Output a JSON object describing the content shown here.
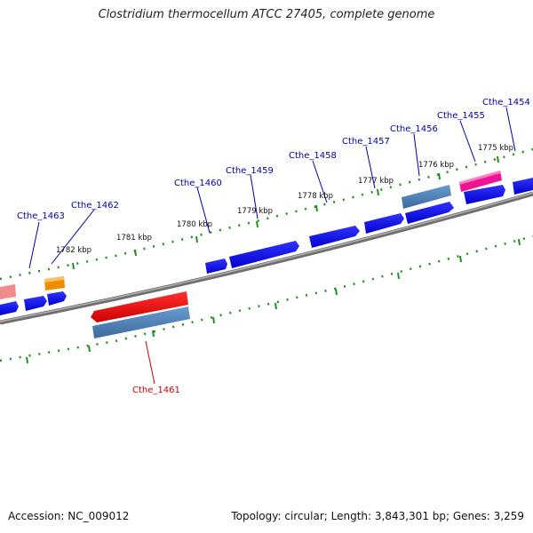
{
  "header": {
    "title": "Clostridium thermocellum ATCC 27405, complete genome"
  },
  "footer": {
    "accession": "Accession: NC_009012",
    "topology": "Topology: circular; Length: 3,843,301 bp; Genes: 3,259"
  },
  "colors": {
    "backbone": "#7f7f7f",
    "tick_green": "#1f8f1f",
    "forward_gene": "#0000ee",
    "highlight_gene": "#ee0000",
    "steel_gene": "#4a7fb5",
    "orange_gene": "#f08c00",
    "pink_gene": "#ee1493",
    "label_blue": "#0000aa",
    "label_red": "#cc0000"
  },
  "kbp_labels": [
    "1775 kbp",
    "1776 kbp",
    "1777 kbp",
    "1778 kbp",
    "1779 kbp",
    "1780 kbp",
    "1781 kbp",
    "1782 kbp"
  ],
  "gene_labels": [
    "Cthe_1454",
    "Cthe_1455",
    "Cthe_1456",
    "Cthe_1457",
    "Cthe_1458",
    "Cthe_1459",
    "Cthe_1460",
    "Cthe_1462",
    "Cthe_1463"
  ],
  "highlight_label": "Cthe_1461"
}
